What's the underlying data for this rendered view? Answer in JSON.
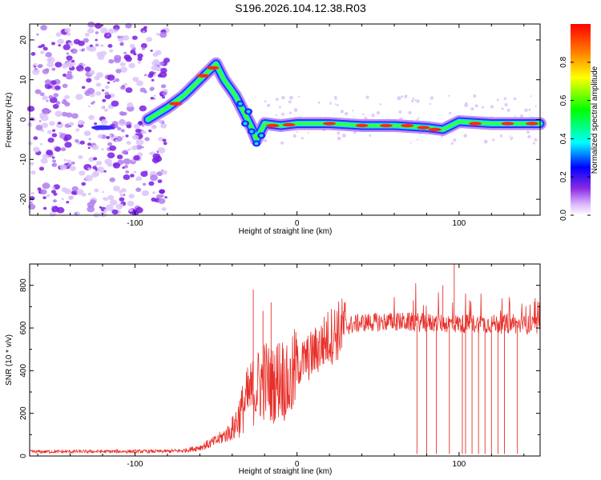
{
  "title": "S196.2026.104.12.38.R03",
  "chart_data": [
    {
      "type": "heatmap",
      "panel": "spectrogram",
      "xlabel": "Height of straight line (km)",
      "ylabel": "Frequency (Hz)",
      "xlim": [
        -165,
        150
      ],
      "ylim": [
        -24,
        24
      ],
      "xticks": [
        -100,
        0,
        100
      ],
      "yticks": [
        -20,
        -10,
        0,
        10,
        20
      ],
      "colorbar": {
        "label": "Normalized spectral amplitude",
        "range": [
          0,
          1
        ],
        "ticks": [
          0.0,
          0.2,
          0.4,
          0.6,
          0.8
        ],
        "tick_labels": [
          "0.0",
          "0.2",
          "0.4",
          "0.6",
          "0.8"
        ]
      },
      "ridge": [
        {
          "x": -92,
          "f": 0
        },
        {
          "x": -80,
          "f": 3
        },
        {
          "x": -70,
          "f": 6
        },
        {
          "x": -60,
          "f": 10
        },
        {
          "x": -50,
          "f": 14
        },
        {
          "x": -45,
          "f": 10
        },
        {
          "x": -38,
          "f": 6
        },
        {
          "x": -33,
          "f": 2
        },
        {
          "x": -28,
          "f": -2
        },
        {
          "x": -25,
          "f": -5
        },
        {
          "x": -20,
          "f": -1
        },
        {
          "x": -10,
          "f": -1.5
        },
        {
          "x": 0,
          "f": -1
        },
        {
          "x": 20,
          "f": -1
        },
        {
          "x": 40,
          "f": -1.5
        },
        {
          "x": 60,
          "f": -1.5
        },
        {
          "x": 80,
          "f": -2
        },
        {
          "x": 90,
          "f": -2.5
        },
        {
          "x": 100,
          "f": -0.5
        },
        {
          "x": 120,
          "f": -1
        },
        {
          "x": 150,
          "f": -1
        }
      ]
    },
    {
      "type": "line",
      "panel": "snr",
      "xlabel": "Height of straight line (km)",
      "ylabel": "SNR (10 * v/v)",
      "xlim": [
        -165,
        150
      ],
      "ylim": [
        0,
        900
      ],
      "xticks": [
        -100,
        0,
        100
      ],
      "yticks": [
        0,
        200,
        400,
        600,
        800
      ],
      "color": "#e8302a",
      "series": [
        {
          "name": "SNR",
          "x": [
            -165,
            -80,
            -70,
            -60,
            -50,
            -40,
            -35,
            -30,
            -25,
            -20,
            -15,
            -10,
            -5,
            0,
            10,
            20,
            30,
            40,
            60,
            80,
            100,
            120,
            140,
            150
          ],
          "values": [
            20,
            22,
            25,
            40,
            70,
            120,
            200,
            280,
            320,
            360,
            330,
            380,
            320,
            420,
            480,
            560,
            610,
            625,
            630,
            625,
            620,
            620,
            615,
            610
          ]
        }
      ],
      "peaks": [
        {
          "x": -27,
          "value": 780
        },
        {
          "x": -21,
          "value": 680
        },
        {
          "x": -16,
          "value": 720
        },
        {
          "x": 97,
          "value": 900
        },
        {
          "x": 90,
          "value": 800
        }
      ],
      "dropouts": [
        74,
        80,
        86,
        94,
        102,
        104,
        108,
        112,
        116,
        120,
        124,
        128,
        136
      ]
    }
  ]
}
